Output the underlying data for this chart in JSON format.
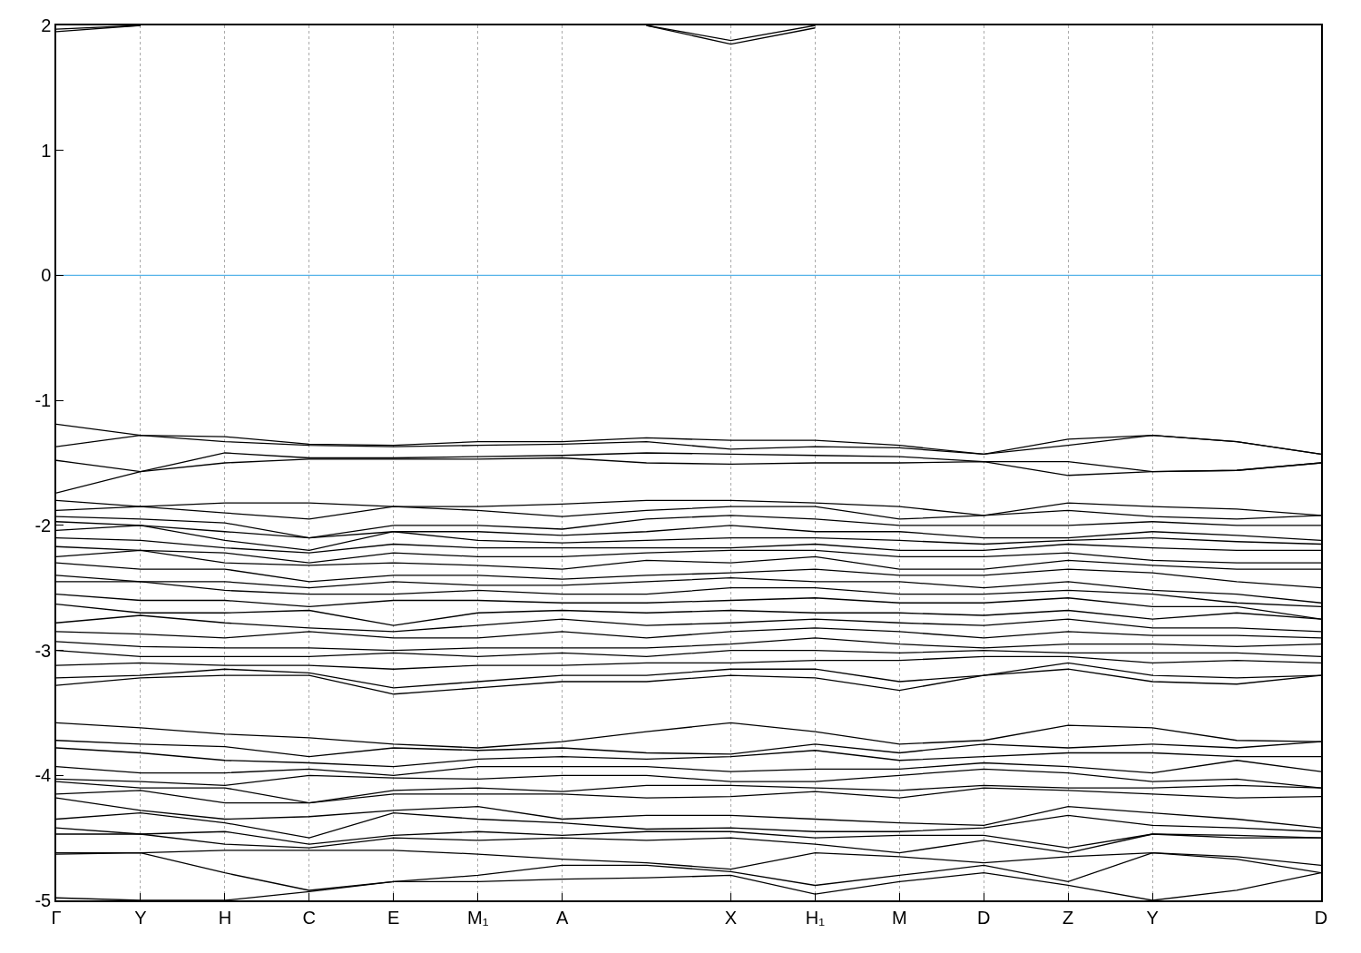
{
  "chart_data": {
    "type": "line",
    "categories": [
      "Γ",
      "Y",
      "H",
      "C",
      "E",
      "M₁",
      "A",
      null,
      "X",
      "H₁",
      "M",
      "D",
      "Z",
      "Y",
      null,
      "D"
    ],
    "ylim": [
      -5,
      2
    ],
    "yticks": [
      -5,
      -4,
      -3,
      -2,
      -1,
      0,
      1,
      2
    ],
    "grid": "x",
    "marker": "none",
    "line_style": "solid",
    "ref_lines": [
      {
        "axis": "y",
        "value": 0,
        "color": "#56b4e9"
      }
    ],
    "series": [
      {
        "color": "#000000",
        "values": [
          1.95,
          2.0,
          null,
          null,
          null,
          null,
          null,
          null,
          null,
          null,
          null,
          null,
          null,
          null,
          null,
          null
        ]
      },
      {
        "color": "#000000",
        "values": [
          1.97,
          2.0,
          null,
          null,
          null,
          null,
          null,
          null,
          null,
          null,
          null,
          null,
          null,
          null,
          null,
          null
        ]
      },
      {
        "color": "#000000",
        "values": [
          null,
          null,
          null,
          null,
          null,
          null,
          null,
          2.0,
          1.88,
          2.0,
          null,
          null,
          null,
          null,
          null,
          null
        ]
      },
      {
        "color": "#000000",
        "values": [
          null,
          null,
          null,
          null,
          null,
          null,
          null,
          2.0,
          1.85,
          1.98,
          null,
          null,
          null,
          null,
          null,
          null
        ]
      },
      {
        "color": "#000000",
        "values": [
          -1.19,
          -1.28,
          -1.29,
          -1.35,
          -1.36,
          -1.33,
          -1.33,
          -1.3,
          -1.32,
          -1.32,
          -1.36,
          -1.43,
          -1.31,
          -1.28,
          -1.33,
          -1.43
        ]
      },
      {
        "color": "#000000",
        "values": [
          -1.37,
          -1.28,
          -1.33,
          -1.36,
          -1.37,
          -1.36,
          -1.35,
          -1.33,
          -1.39,
          -1.37,
          -1.38,
          -1.43,
          -1.36,
          -1.28,
          -1.33,
          -1.43
        ]
      },
      {
        "color": "#000000",
        "values": [
          -1.48,
          -1.57,
          -1.42,
          -1.46,
          -1.46,
          -1.45,
          -1.44,
          -1.42,
          -1.43,
          -1.44,
          -1.45,
          -1.49,
          -1.49,
          -1.57,
          -1.56,
          -1.5
        ]
      },
      {
        "color": "#000000",
        "values": [
          -1.74,
          -1.57,
          -1.5,
          -1.47,
          -1.47,
          -1.47,
          -1.46,
          -1.5,
          -1.51,
          -1.5,
          -1.5,
          -1.49,
          -1.6,
          -1.57,
          -1.56,
          -1.5
        ]
      },
      {
        "color": "#000000",
        "values": [
          -1.8,
          -1.85,
          -1.82,
          -1.82,
          -1.85,
          -1.85,
          -1.83,
          -1.8,
          -1.8,
          -1.82,
          -1.85,
          -1.92,
          -1.82,
          -1.85,
          -1.87,
          -1.92
        ]
      },
      {
        "color": "#000000",
        "values": [
          -1.88,
          -1.85,
          -1.9,
          -1.95,
          -1.85,
          -1.88,
          -1.93,
          -1.88,
          -1.85,
          -1.85,
          -1.95,
          -1.92,
          -1.88,
          -1.93,
          -1.95,
          -1.92
        ]
      },
      {
        "color": "#000000",
        "values": [
          -1.93,
          -1.95,
          -1.98,
          -2.1,
          -2.0,
          -2.0,
          -2.03,
          -1.95,
          -1.92,
          -1.95,
          -2.0,
          -2.0,
          -2.0,
          -1.97,
          -2.0,
          -2.0
        ]
      },
      {
        "color": "#000000",
        "values": [
          -1.97,
          -2.0,
          -2.05,
          -2.1,
          -2.05,
          -2.05,
          -2.08,
          -2.05,
          -2.0,
          -2.05,
          -2.05,
          -2.1,
          -2.1,
          -2.05,
          -2.08,
          -2.12
        ]
      },
      {
        "color": "#000000",
        "values": [
          -2.04,
          -2.0,
          -2.12,
          -2.2,
          -2.05,
          -2.12,
          -2.14,
          -2.12,
          -2.1,
          -2.1,
          -2.12,
          -2.15,
          -2.12,
          -2.1,
          -2.13,
          -2.15
        ]
      },
      {
        "color": "#000000",
        "values": [
          -2.1,
          -2.12,
          -2.18,
          -2.22,
          -2.15,
          -2.18,
          -2.18,
          -2.18,
          -2.18,
          -2.15,
          -2.2,
          -2.2,
          -2.15,
          -2.18,
          -2.2,
          -2.2
        ]
      },
      {
        "color": "#000000",
        "values": [
          -2.17,
          -2.2,
          -2.22,
          -2.3,
          -2.22,
          -2.25,
          -2.25,
          -2.22,
          -2.2,
          -2.2,
          -2.25,
          -2.25,
          -2.22,
          -2.28,
          -2.3,
          -2.3
        ]
      },
      {
        "color": "#000000",
        "values": [
          -2.25,
          -2.2,
          -2.3,
          -2.32,
          -2.3,
          -2.32,
          -2.35,
          -2.28,
          -2.3,
          -2.25,
          -2.35,
          -2.35,
          -2.28,
          -2.32,
          -2.35,
          -2.35
        ]
      },
      {
        "color": "#000000",
        "values": [
          -2.3,
          -2.35,
          -2.35,
          -2.45,
          -2.4,
          -2.4,
          -2.43,
          -2.4,
          -2.38,
          -2.35,
          -2.4,
          -2.4,
          -2.35,
          -2.38,
          -2.45,
          -2.5
        ]
      },
      {
        "color": "#000000",
        "values": [
          -2.4,
          -2.45,
          -2.45,
          -2.5,
          -2.45,
          -2.48,
          -2.48,
          -2.45,
          -2.42,
          -2.45,
          -2.45,
          -2.5,
          -2.45,
          -2.52,
          -2.55,
          -2.62
        ]
      },
      {
        "color": "#000000",
        "values": [
          -2.45,
          -2.45,
          -2.52,
          -2.55,
          -2.55,
          -2.52,
          -2.55,
          -2.55,
          -2.5,
          -2.5,
          -2.55,
          -2.55,
          -2.52,
          -2.55,
          -2.62,
          -2.65
        ]
      },
      {
        "color": "#000000",
        "values": [
          -2.55,
          -2.6,
          -2.6,
          -2.65,
          -2.6,
          -2.6,
          -2.62,
          -2.62,
          -2.6,
          -2.58,
          -2.62,
          -2.62,
          -2.58,
          -2.65,
          -2.65,
          -2.75
        ]
      },
      {
        "color": "#000000",
        "values": [
          -2.63,
          -2.7,
          -2.7,
          -2.68,
          -2.8,
          -2.7,
          -2.68,
          -2.7,
          -2.68,
          -2.7,
          -2.7,
          -2.72,
          -2.68,
          -2.75,
          -2.7,
          -2.75
        ]
      },
      {
        "color": "#000000",
        "values": [
          -2.78,
          -2.72,
          -2.78,
          -2.82,
          -2.85,
          -2.8,
          -2.75,
          -2.8,
          -2.78,
          -2.75,
          -2.78,
          -2.8,
          -2.75,
          -2.82,
          -2.82,
          -2.85
        ]
      },
      {
        "color": "#000000",
        "values": [
          -2.85,
          -2.87,
          -2.9,
          -2.85,
          -2.9,
          -2.9,
          -2.85,
          -2.9,
          -2.85,
          -2.82,
          -2.85,
          -2.9,
          -2.85,
          -2.88,
          -2.88,
          -2.9
        ]
      },
      {
        "color": "#000000",
        "values": [
          -2.93,
          -2.97,
          -2.98,
          -2.98,
          -3.0,
          -2.98,
          -2.98,
          -2.98,
          -2.95,
          -2.9,
          -2.95,
          -2.98,
          -2.95,
          -2.95,
          -2.97,
          -2.95
        ]
      },
      {
        "color": "#000000",
        "values": [
          -3.0,
          -3.05,
          -3.05,
          -3.05,
          -3.02,
          -3.05,
          -3.02,
          -3.05,
          -3.0,
          -3.0,
          -3.02,
          -3.0,
          -3.02,
          -3.02,
          -3.02,
          -3.05
        ]
      },
      {
        "color": "#000000",
        "values": [
          -3.12,
          -3.1,
          -3.12,
          -3.12,
          -3.15,
          -3.12,
          -3.12,
          -3.1,
          -3.1,
          -3.08,
          -3.08,
          -3.05,
          -3.05,
          -3.1,
          -3.08,
          -3.1
        ]
      },
      {
        "color": "#000000",
        "values": [
          -3.22,
          -3.2,
          -3.15,
          -3.18,
          -3.3,
          -3.25,
          -3.2,
          -3.2,
          -3.15,
          -3.15,
          -3.25,
          -3.2,
          -3.1,
          -3.2,
          -3.22,
          -3.2
        ]
      },
      {
        "color": "#000000",
        "values": [
          -3.28,
          -3.22,
          -3.2,
          -3.2,
          -3.35,
          -3.3,
          -3.25,
          -3.25,
          -3.2,
          -3.22,
          -3.32,
          -3.2,
          -3.15,
          -3.25,
          -3.27,
          -3.2
        ]
      },
      {
        "color": "#000000",
        "values": [
          -3.58,
          -3.62,
          -3.67,
          -3.7,
          -3.75,
          -3.78,
          -3.73,
          -3.65,
          -3.58,
          -3.65,
          -3.75,
          -3.72,
          -3.6,
          -3.62,
          -3.72,
          -3.73
        ]
      },
      {
        "color": "#000000",
        "values": [
          -3.72,
          -3.75,
          -3.77,
          -3.85,
          -3.78,
          -3.8,
          -3.78,
          -3.82,
          -3.83,
          -3.75,
          -3.82,
          -3.75,
          -3.78,
          -3.75,
          -3.78,
          -3.73
        ]
      },
      {
        "color": "#000000",
        "values": [
          -3.78,
          -3.82,
          -3.88,
          -3.9,
          -3.93,
          -3.87,
          -3.85,
          -3.87,
          -3.85,
          -3.8,
          -3.88,
          -3.85,
          -3.82,
          -3.82,
          -3.85,
          -3.85
        ]
      },
      {
        "color": "#000000",
        "values": [
          -3.93,
          -3.98,
          -3.98,
          -3.95,
          -4.0,
          -3.93,
          -3.93,
          -3.93,
          -3.97,
          -3.95,
          -3.95,
          -3.9,
          -3.93,
          -3.98,
          -3.88,
          -3.97
        ]
      },
      {
        "color": "#000000",
        "values": [
          -4.03,
          -4.05,
          -4.08,
          -4.0,
          -4.02,
          -4.03,
          -4.0,
          -4.0,
          -4.05,
          -4.05,
          -4.0,
          -3.95,
          -3.98,
          -4.05,
          -4.03,
          -4.1
        ]
      },
      {
        "color": "#000000",
        "values": [
          -4.05,
          -4.1,
          -4.1,
          -4.22,
          -4.12,
          -4.1,
          -4.13,
          -4.08,
          -4.08,
          -4.1,
          -4.12,
          -4.08,
          -4.1,
          -4.1,
          -4.08,
          -4.1
        ]
      },
      {
        "color": "#000000",
        "values": [
          -4.15,
          -4.12,
          -4.22,
          -4.22,
          -4.15,
          -4.15,
          -4.15,
          -4.18,
          -4.17,
          -4.13,
          -4.18,
          -4.1,
          -4.12,
          -4.15,
          -4.18,
          -4.17
        ]
      },
      {
        "color": "#000000",
        "values": [
          -4.18,
          -4.28,
          -4.35,
          -4.33,
          -4.28,
          -4.25,
          -4.35,
          -4.32,
          -4.32,
          -4.35,
          -4.38,
          -4.4,
          -4.25,
          -4.3,
          -4.35,
          -4.42
        ]
      },
      {
        "color": "#000000",
        "values": [
          -4.35,
          -4.3,
          -4.38,
          -4.5,
          -4.3,
          -4.35,
          -4.38,
          -4.43,
          -4.42,
          -4.45,
          -4.45,
          -4.42,
          -4.32,
          -4.4,
          -4.42,
          -4.45
        ]
      },
      {
        "color": "#000000",
        "values": [
          -4.42,
          -4.47,
          -4.45,
          -4.55,
          -4.48,
          -4.45,
          -4.48,
          -4.45,
          -4.45,
          -4.5,
          -4.48,
          -4.48,
          -4.58,
          -4.47,
          -4.48,
          -4.5
        ]
      },
      {
        "color": "#000000",
        "values": [
          -4.47,
          -4.47,
          -4.55,
          -4.58,
          -4.5,
          -4.52,
          -4.5,
          -4.52,
          -4.5,
          -4.55,
          -4.62,
          -4.52,
          -4.62,
          -4.47,
          -4.5,
          -4.5
        ]
      },
      {
        "color": "#000000",
        "values": [
          -4.62,
          -4.62,
          -4.6,
          -4.6,
          -4.6,
          -4.63,
          -4.67,
          -4.7,
          -4.75,
          -4.62,
          -4.65,
          -4.7,
          -4.65,
          -4.62,
          -4.65,
          -4.72
        ]
      },
      {
        "color": "#000000",
        "values": [
          -4.63,
          -4.62,
          -4.78,
          -4.92,
          -4.85,
          -4.8,
          -4.72,
          -4.72,
          -4.77,
          -4.88,
          -4.8,
          -4.72,
          -4.85,
          -4.62,
          -4.67,
          -4.78
        ]
      },
      {
        "color": "#000000",
        "values": [
          -4.98,
          -5.0,
          -5.0,
          -4.93,
          -4.85,
          -4.85,
          -4.83,
          -4.82,
          -4.8,
          -4.95,
          -4.85,
          -4.78,
          -4.88,
          -5.0,
          -4.92,
          -4.78
        ]
      }
    ]
  }
}
